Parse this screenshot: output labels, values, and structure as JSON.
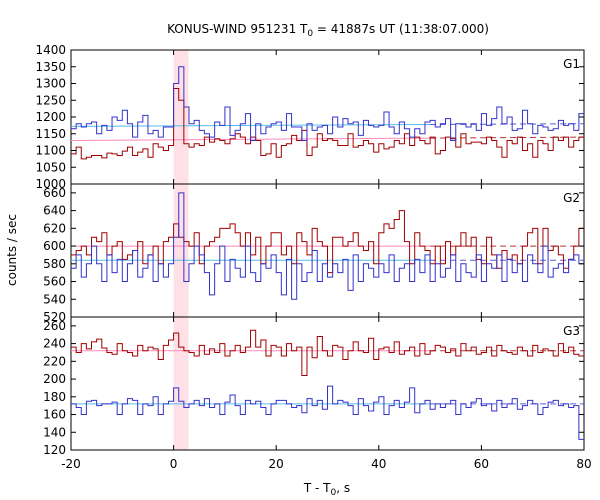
{
  "chart_data": {
    "type": "line",
    "title_main": "KONUS-WIND 951231 T",
    "title_sub": "0",
    "title_rest": " = 41887s UT (11:38:07.000)",
    "xlabel_main": "T - T",
    "xlabel_sub": "0",
    "xlabel_rest": ", s",
    "ylabel": "counts / sec",
    "xlim": [
      -20,
      80
    ],
    "x_ticks": [
      "-20",
      "0",
      "20",
      "40",
      "60",
      "80"
    ],
    "highlight_band": [
      0,
      2.9
    ],
    "colors": {
      "red_series": "#a00000",
      "blue_series": "#3333cc",
      "red_background": "#ff88bb",
      "blue_background": "#55bbee",
      "band": "#ffe0e6"
    },
    "panels": [
      {
        "label": "G1",
        "ylim": [
          1000,
          1400
        ],
        "y_ticks": [
          "1000",
          "1050",
          "1100",
          "1150",
          "1200",
          "1250",
          "1300",
          "1350",
          "1400"
        ],
        "background_fits": {
          "red": {
            "y_start": 1130,
            "y_end": 1140,
            "dashed_from": 50
          },
          "blue": {
            "y_start": 1172,
            "y_end": 1180,
            "dashed_from": 50
          }
        },
        "series": [
          {
            "color_key": "red_series",
            "x_start": -20,
            "dx": 1,
            "values": [
              1090,
              1110,
              1075,
              1080,
              1085,
              1085,
              1078,
              1092,
              1090,
              1085,
              1098,
              1110,
              1085,
              1095,
              1105,
              1080,
              1120,
              1110,
              1100,
              1115,
              1285,
              1250,
              1120,
              1110,
              1120,
              1115,
              1140,
              1125,
              1135,
              1130,
              1120,
              1135,
              1150,
              1140,
              1120,
              1140,
              1130,
              1085,
              1090,
              1120,
              1080,
              1115,
              1120,
              1145,
              1130,
              1160,
              1085,
              1110,
              1150,
              1130,
              1135,
              1130,
              1115,
              1115,
              1150,
              1110,
              1115,
              1130,
              1120,
              1095,
              1120,
              1105,
              1110,
              1130,
              1120,
              1150,
              1115,
              1140,
              1130,
              1120,
              1140,
              1090,
              1100,
              1140,
              1135,
              1110,
              1150,
              1120,
              1125,
              1125,
              1120,
              1140,
              1130,
              1110,
              1080,
              1130,
              1120,
              1140,
              1100,
              1120,
              1080,
              1130,
              1120,
              1100,
              1140,
              1130,
              1140,
              1110,
              1130,
              1140
            ]
          },
          {
            "color_key": "blue_series",
            "x_start": -20,
            "dx": 1,
            "values": [
              1165,
              1180,
              1170,
              1180,
              1185,
              1150,
              1175,
              1160,
              1200,
              1190,
              1220,
              1180,
              1140,
              1185,
              1205,
              1150,
              1160,
              1140,
              1170,
              1170,
              1300,
              1350,
              1230,
              1180,
              1190,
              1160,
              1150,
              1140,
              1185,
              1175,
              1230,
              1145,
              1160,
              1180,
              1210,
              1130,
              1180,
              1150,
              1170,
              1180,
              1185,
              1160,
              1210,
              1170,
              1170,
              1130,
              1180,
              1160,
              1170,
              1175,
              1150,
              1200,
              1170,
              1195,
              1180,
              1185,
              1145,
              1190,
              1175,
              1170,
              1175,
              1215,
              1170,
              1150,
              1185,
              1165,
              1140,
              1165,
              1150,
              1185,
              1190,
              1170,
              1180,
              1195,
              1130,
              1180,
              1180,
              1170,
              1180,
              1160,
              1210,
              1175,
              1195,
              1230,
              1180,
              1200,
              1160,
              1165,
              1220,
              1180,
              1150,
              1175,
              1170,
              1160,
              1165,
              1190,
              1175,
              1180,
              1160,
              1210
            ]
          }
        ]
      },
      {
        "label": "G2",
        "ylim": [
          520,
          670
        ],
        "y_ticks": [
          "520",
          "540",
          "560",
          "580",
          "600",
          "620",
          "640",
          "660"
        ],
        "background_fits": {
          "red": {
            "y_start": 600,
            "y_end": 600,
            "dashed_from": 50
          },
          "blue": {
            "y_start": 584,
            "y_end": 584,
            "dashed_from": 50
          }
        },
        "series": [
          {
            "color_key": "red_series",
            "x_start": -20,
            "dx": 1,
            "values": [
              590,
              595,
              600,
              590,
              610,
              605,
              615,
              590,
              600,
              605,
              585,
              590,
              595,
              605,
              580,
              590,
              600,
              580,
              605,
              610,
              625,
              610,
              605,
              600,
              615,
              580,
              600,
              605,
              610,
              620,
              620,
              625,
              615,
              600,
              615,
              590,
              610,
              580,
              600,
              615,
              615,
              590,
              600,
              580,
              615,
              605,
              590,
              620,
              605,
              600,
              570,
              610,
              610,
              600,
              605,
              615,
              600,
              595,
              605,
              580,
              615,
              625,
              620,
              630,
              640,
              605,
              580,
              615,
              600,
              595,
              580,
              600,
              580,
              605,
              590,
              600,
              615,
              600,
              610,
              585,
              580,
              610,
              590,
              575,
              595,
              585,
              590,
              580,
              600,
              615,
              620,
              580,
              620,
              595,
              600,
              590,
              575,
              585,
              600,
              620
            ]
          },
          {
            "color_key": "blue_series",
            "x_start": -20,
            "dx": 1,
            "values": [
              575,
              590,
              565,
              580,
              600,
              580,
              560,
              590,
              570,
              585,
              560,
              580,
              595,
              565,
              575,
              590,
              560,
              580,
              565,
              580,
              610,
              660,
              560,
              580,
              600,
              590,
              570,
              545,
              580,
              600,
              560,
              585,
              575,
              565,
              600,
              570,
              560,
              580,
              575,
              590,
              570,
              545,
              585,
              540,
              580,
              560,
              570,
              595,
              560,
              580,
              565,
              580,
              570,
              585,
              550,
              590,
              560,
              580,
              575,
              565,
              580,
              570,
              590,
              560,
              575,
              580,
              560,
              585,
              570,
              590,
              560,
              580,
              565,
              575,
              590,
              560,
              580,
              570,
              565,
              590,
              560,
              580,
              575,
              590,
              560,
              585,
              570,
              580,
              560,
              590,
              580,
              570,
              600,
              565,
              575,
              580,
              570,
              585,
              590,
              580
            ]
          }
        ]
      },
      {
        "label": "G3",
        "ylim": [
          120,
          270
        ],
        "y_ticks": [
          "120",
          "140",
          "160",
          "180",
          "200",
          "220",
          "240",
          "260"
        ],
        "background_fits": {
          "red": {
            "y_start": 232,
            "y_end": 232,
            "dashed_from": 50
          },
          "blue": {
            "y_start": 172,
            "y_end": 172,
            "dashed_from": 50
          }
        },
        "series": [
          {
            "color_key": "red_series",
            "x_start": -20,
            "dx": 1,
            "values": [
              236,
              230,
              240,
              234,
              242,
              245,
              235,
              230,
              228,
              240,
              232,
              230,
              226,
              238,
              232,
              236,
              234,
              222,
              238,
              244,
              252,
              236,
              232,
              230,
              226,
              238,
              228,
              234,
              230,
              240,
              226,
              232,
              238,
              230,
              236,
              255,
              236,
              244,
              226,
              238,
              236,
              226,
              240,
              232,
              236,
              204,
              236,
              224,
              248,
              232,
              226,
              238,
              236,
              222,
              232,
              242,
              232,
              230,
              246,
              222,
              234,
              236,
              230,
              242,
              228,
              232,
              236,
              226,
              240,
              228,
              232,
              238,
              236,
              230,
              234,
              226,
              240,
              232,
              236,
              228,
              230,
              236,
              226,
              238,
              232,
              230,
              228,
              236,
              232,
              226,
              238,
              230,
              234,
              232,
              226,
              240,
              230,
              236,
              228,
              226
            ]
          },
          {
            "color_key": "blue_series",
            "x_start": -20,
            "dx": 1,
            "values": [
              172,
              168,
              160,
              175,
              176,
              170,
              172,
              172,
              174,
              160,
              172,
              178,
              176,
              160,
              172,
              170,
              180,
              160,
              172,
              175,
              190,
              175,
              168,
              172,
              176,
              170,
              178,
              168,
              172,
              160,
              174,
              182,
              170,
              160,
              176,
              172,
              175,
              168,
              160,
              172,
              176,
              176,
              172,
              168,
              170,
              162,
              178,
              170,
              176,
              166,
              192,
              172,
              176,
              174,
              170,
              160,
              178,
              170,
              164,
              174,
              180,
              160,
              170,
              176,
              168,
              174,
              190,
              162,
              172,
              176,
              166,
              172,
              168,
              172,
              176,
              160,
              172,
              168,
              174,
              178,
              170,
              172,
              164,
              176,
              168,
              172,
              178,
              166,
              170,
              176,
              172,
              160,
              168,
              174,
              176,
              170,
              172,
              168,
              170,
              132
            ]
          }
        ]
      }
    ]
  }
}
